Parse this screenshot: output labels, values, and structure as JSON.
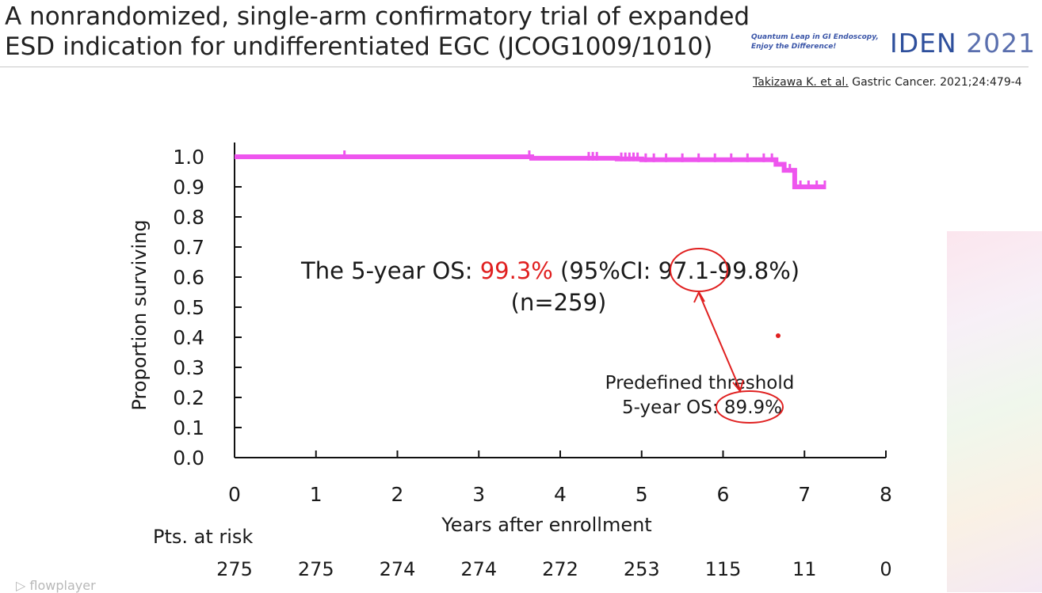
{
  "slide": {
    "title_line1": "A nonrandomized, single-arm confirmatory trial of expanded",
    "title_line2": "ESD indication for undifferentiated EGC (JCOG1009/1010)",
    "tagline_line1": "Quantum Leap in GI Endoscopy,",
    "tagline_line2": "Enjoy the Difference!",
    "logo_text": "IDEN",
    "logo_year": "2021",
    "citation_author": "Takizawa K. et al.",
    "citation_rest": " Gastric Cancer. 2021;24:479-4",
    "watermark": "flowplayer"
  },
  "colors": {
    "curve": "#ee55ee",
    "highlight": "#e02020",
    "axis": "#111111",
    "text": "#1a1a1a"
  },
  "chart_data": {
    "type": "line",
    "title": "",
    "xlabel": "Years after enrollment",
    "ylabel": "Proportion surviving",
    "xlim": [
      0,
      8
    ],
    "ylim": [
      0,
      1.0
    ],
    "x_ticks": [
      "0",
      "1",
      "2",
      "3",
      "4",
      "5",
      "6",
      "7",
      "8"
    ],
    "y_ticks": [
      "0.0",
      "0.1",
      "0.2",
      "0.3",
      "0.4",
      "0.5",
      "0.6",
      "0.7",
      "0.8",
      "0.9",
      "1.0"
    ],
    "series": [
      {
        "points": [
          [
            0,
            1.0
          ],
          [
            3.65,
            1.0
          ],
          [
            3.65,
            0.995
          ],
          [
            4.7,
            0.995
          ],
          [
            4.7,
            0.993
          ],
          [
            5.0,
            0.993
          ],
          [
            5.0,
            0.99
          ],
          [
            6.65,
            0.99
          ],
          [
            6.65,
            0.975
          ],
          [
            6.75,
            0.975
          ],
          [
            6.75,
            0.955
          ],
          [
            6.88,
            0.955
          ],
          [
            6.88,
            0.9
          ],
          [
            7.25,
            0.9
          ]
        ],
        "censor_marks": [
          1.35,
          3.62,
          4.35,
          4.4,
          4.45,
          4.75,
          4.8,
          4.85,
          4.9,
          4.95,
          5.05,
          5.15,
          5.3,
          5.5,
          5.7,
          5.9,
          6.1,
          6.3,
          6.5,
          6.6,
          6.82,
          6.95,
          7.05,
          7.15,
          7.25
        ]
      }
    ],
    "annotation_main_prefix": "The 5-year OS: ",
    "annotation_main_value": "99.3%",
    "annotation_ci_prefix": " (95%CI: ",
    "annotation_ci_low": "97.1",
    "annotation_ci_rest": "-99.8%)",
    "annotation_n": "(n=259)",
    "threshold_label": "Predefined threshold",
    "threshold_prefix": "5-year OS: ",
    "threshold_value": "89.9%",
    "risk_table": {
      "label": "Pts. at risk",
      "values": [
        "275",
        "275",
        "274",
        "274",
        "272",
        "253",
        "115",
        "11",
        "0"
      ]
    }
  }
}
